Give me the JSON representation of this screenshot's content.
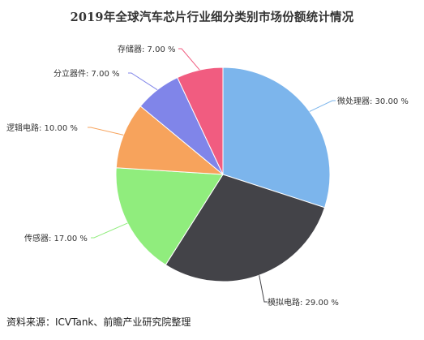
{
  "chart_data": {
    "type": "pie",
    "title": "2019年全球汽车芯片行业细分类别市场份额统计情况",
    "slices": [
      {
        "label": "微处理器",
        "value": 30.0,
        "display": "微处理器: 30.00 %",
        "color": "#7cb5ec"
      },
      {
        "label": "模拟电路",
        "value": 29.0,
        "display": "模拟电路: 29.00 %",
        "color": "#434348"
      },
      {
        "label": "传感器",
        "value": 17.0,
        "display": "传感器: 17.00 %",
        "color": "#90ed7d"
      },
      {
        "label": "逻辑电路",
        "value": 10.0,
        "display": "逻辑电路: 10.00 %",
        "color": "#f7a35c"
      },
      {
        "label": "分立器件",
        "value": 7.0,
        "display": "分立器件: 7.00 %",
        "color": "#8085e9"
      },
      {
        "label": "存储器",
        "value": 7.0,
        "display": "存储器: 7.00 %",
        "color": "#f15c80"
      }
    ]
  },
  "source": "资料来源：ICVTank、前瞻产业研究院整理"
}
